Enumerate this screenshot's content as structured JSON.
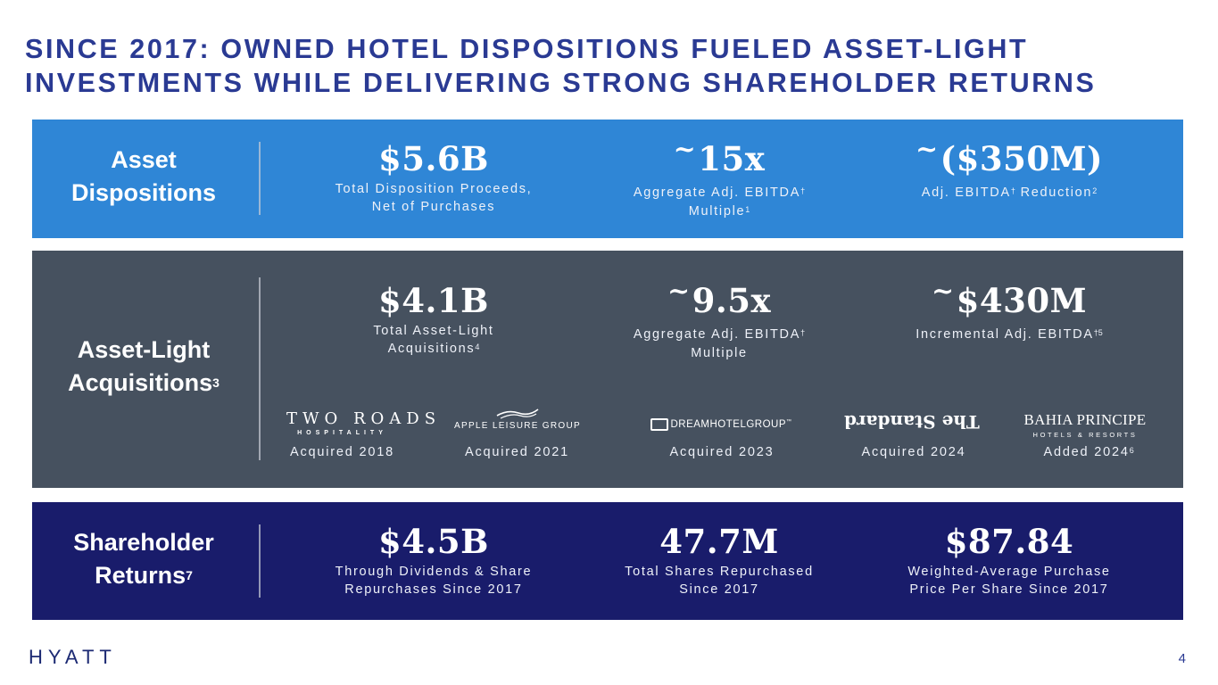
{
  "title": {
    "line1": "SINCE 2017: OWNED HOTEL DISPOSITIONS FUELED ASSET-LIGHT",
    "line2": "INVESTMENTS WHILE DELIVERING STRONG SHAREHOLDER RETURNS"
  },
  "colors": {
    "title": "#2a3a93",
    "dispositions_band": "#2f86d6",
    "acquisitions_band": "#46515f",
    "returns_band": "#191c6b"
  },
  "dispositions": {
    "label_line1": "Asset",
    "label_line2": "Dispositions",
    "stats": [
      {
        "prefix": "",
        "value": "$5.6B",
        "desc1": "Total Disposition Proceeds,",
        "desc2": "Net of Purchases"
      },
      {
        "prefix": "~",
        "value": "15x",
        "desc1": "Aggregate Adj. EBITDA",
        "desc1_sup": "†",
        "desc2": "Multiple",
        "desc2_sup": "1"
      },
      {
        "prefix": "~",
        "value": "($350M)",
        "desc1_a": "Adj. EBITDA",
        "desc1_sup_a": "†",
        "desc1_b": " Reduction",
        "desc1_sup_b": "2"
      }
    ]
  },
  "acquisitions": {
    "label_line1": "Asset-Light",
    "label_line2": "Acquisitions",
    "label_sup": "3",
    "stats": [
      {
        "prefix": "",
        "value": "$4.1B",
        "desc1": "Total Asset-Light",
        "desc2": "Acquisitions",
        "desc2_sup": "4"
      },
      {
        "prefix": "~",
        "value": "9.5x",
        "desc1": "Aggregate Adj. EBITDA",
        "desc1_sup": "†",
        "desc2": "Multiple"
      },
      {
        "prefix": "~",
        "value": "$430M",
        "desc1": "Incremental Adj. EBITDA",
        "desc1_sup": "†5"
      }
    ],
    "brands": [
      {
        "logo_main": "TWO ROADS",
        "logo_sub": "HOSPITALITY",
        "caption": "Acquired 2018",
        "icon": "two-roads-logo"
      },
      {
        "logo_main": "APPLE LEISURE GROUP",
        "caption": "Acquired 2021",
        "icon": "apple-leisure-group-logo"
      },
      {
        "logo_main": "DREAMHOTELGROUP",
        "tm": "™",
        "caption": "Acquired 2023",
        "icon": "dream-hotel-group-logo"
      },
      {
        "logo_main": "The Standard",
        "caption": "Acquired 2024",
        "icon": "the-standard-logo"
      },
      {
        "logo_main": "BAHIA PRINCIPE",
        "logo_sub": "HOTELS & RESORTS",
        "caption": "Added 2024",
        "caption_sup": "6",
        "icon": "bahia-principe-logo"
      }
    ]
  },
  "returns": {
    "label_line1": "Shareholder",
    "label_line2": "Returns",
    "label_sup": "7",
    "stats": [
      {
        "value": "$4.5B",
        "desc1": "Through Dividends & Share",
        "desc2": "Repurchases Since 2017"
      },
      {
        "value": "47.7M",
        "desc1": "Total Shares Repurchased",
        "desc2": "Since 2017"
      },
      {
        "value": "$87.84",
        "desc1": "Weighted-Average Purchase",
        "desc2": "Price Per Share Since 2017"
      }
    ]
  },
  "footer": {
    "logo": "HYATT",
    "page_number": "4"
  }
}
